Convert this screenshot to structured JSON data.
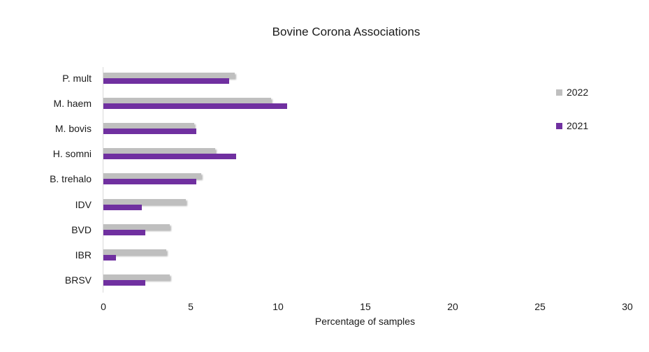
{
  "chart_data": {
    "type": "bar",
    "orientation": "horizontal",
    "title": "Bovine Corona Associations",
    "xlabel": "Percentage of samples",
    "ylabel": "",
    "xlim": [
      0,
      30
    ],
    "x_ticks": [
      "0",
      "5",
      "10",
      "15",
      "20",
      "25",
      "30"
    ],
    "grid": false,
    "legend_position": "right",
    "categories": [
      "P. mult",
      "M. haem",
      "M. bovis",
      "H. somni",
      "B. trehalo",
      "IDV",
      "BVD",
      "IBR",
      "BRSV"
    ],
    "series": [
      {
        "name": "2022",
        "color": "#bfbfbf",
        "values": [
          7.5,
          9.6,
          5.2,
          6.4,
          5.6,
          4.7,
          3.8,
          3.6,
          3.8
        ]
      },
      {
        "name": "2021",
        "color": "#7030a0",
        "values": [
          7.2,
          10.5,
          5.3,
          7.6,
          5.3,
          2.2,
          2.4,
          0.7,
          2.4
        ]
      }
    ]
  }
}
